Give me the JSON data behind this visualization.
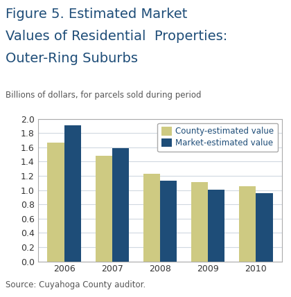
{
  "title_line1": "Figure 5. Estimated Market",
  "title_line2": "Values of Residential  Properties:",
  "title_line3": "Outer-Ring Suburbs",
  "subtitle": "Billions of dollars, for parcels sold during period",
  "source": "Source: Cuyahoga County auditor.",
  "categories": [
    "2006",
    "2007",
    "2008",
    "2009",
    "2010"
  ],
  "county_values": [
    1.67,
    1.48,
    1.23,
    1.11,
    1.05
  ],
  "market_values": [
    1.91,
    1.59,
    1.13,
    1.01,
    0.96
  ],
  "county_color": "#ceca82",
  "market_color": "#1e4d78",
  "ylim": [
    0.0,
    2.0
  ],
  "yticks": [
    0.0,
    0.2,
    0.4,
    0.6,
    0.8,
    1.0,
    1.2,
    1.4,
    1.6,
    1.8,
    2.0
  ],
  "legend_labels": [
    "County-estimated value",
    "Market-estimated value"
  ],
  "title_color": "#1e4d78",
  "background_color": "#ffffff",
  "grid_color": "#d0d8e0",
  "bar_width": 0.35,
  "title_fontsize": 14,
  "subtitle_fontsize": 8.5,
  "tick_fontsize": 9,
  "legend_fontsize": 8.5,
  "source_fontsize": 8.5
}
